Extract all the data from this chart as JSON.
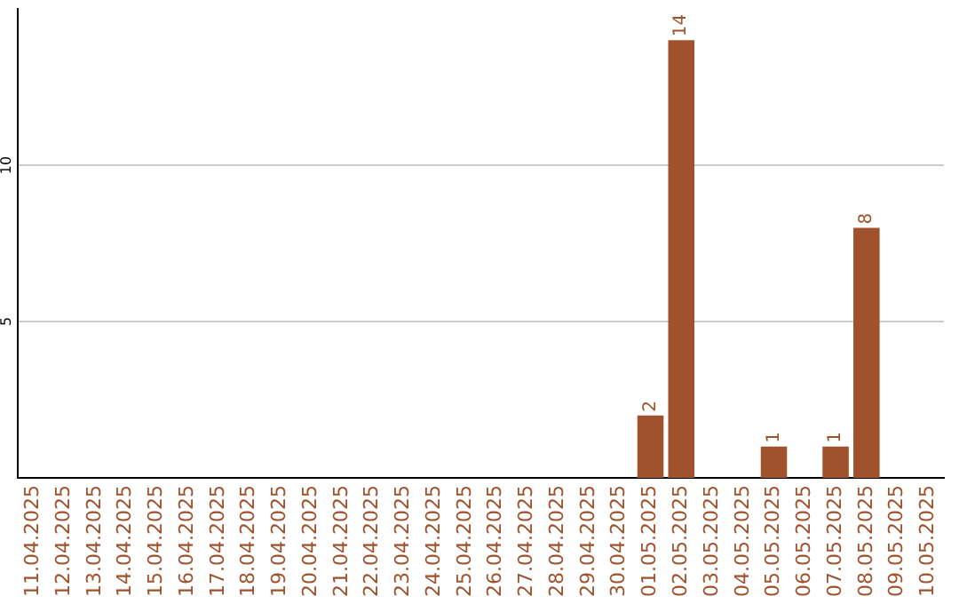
{
  "chart_data": {
    "type": "bar",
    "categories": [
      "11.04.2025",
      "12.04.2025",
      "13.04.2025",
      "14.04.2025",
      "15.04.2025",
      "16.04.2025",
      "17.04.2025",
      "18.04.2025",
      "19.04.2025",
      "20.04.2025",
      "21.04.2025",
      "22.04.2025",
      "23.04.2025",
      "24.04.2025",
      "25.04.2025",
      "26.04.2025",
      "27.04.2025",
      "28.04.2025",
      "29.04.2025",
      "30.04.2025",
      "01.05.2025",
      "02.05.2025",
      "03.05.2025",
      "04.05.2025",
      "05.05.2025",
      "06.05.2025",
      "07.05.2025",
      "08.05.2025",
      "09.05.2025",
      "10.05.2025"
    ],
    "values": [
      0,
      0,
      0,
      0,
      0,
      0,
      0,
      0,
      0,
      0,
      0,
      0,
      0,
      0,
      0,
      0,
      0,
      0,
      0,
      0,
      2,
      14,
      0,
      0,
      1,
      0,
      1,
      8,
      0,
      0
    ],
    "value_labels": [
      null,
      null,
      null,
      null,
      null,
      null,
      null,
      null,
      null,
      null,
      null,
      null,
      null,
      null,
      null,
      null,
      null,
      null,
      null,
      null,
      "2",
      "14",
      null,
      null,
      "1",
      null,
      "1",
      "8",
      null,
      null
    ],
    "color": "#a0522d",
    "ylim": [
      0,
      15
    ],
    "yticks": [
      5,
      10
    ],
    "grid": "y",
    "legend": false
  }
}
